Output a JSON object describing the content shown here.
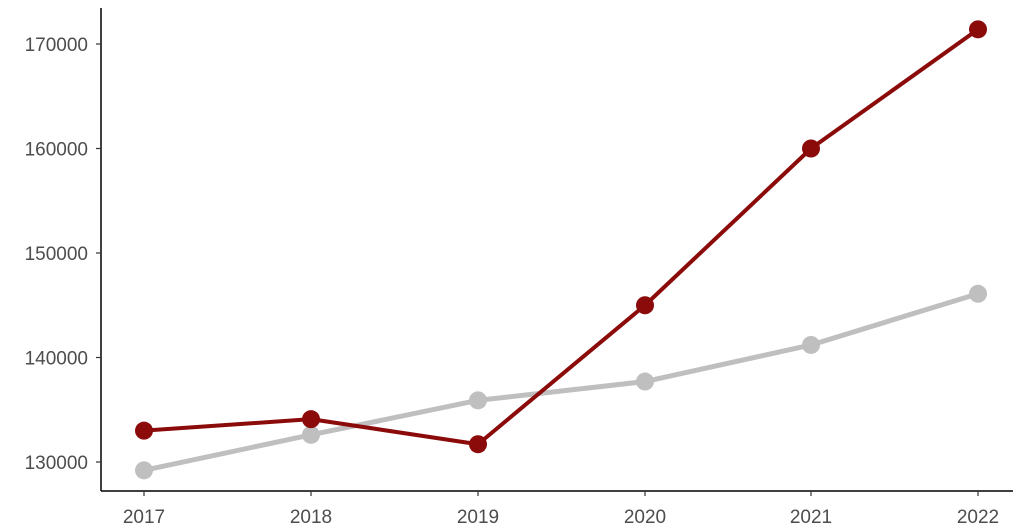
{
  "chart_data": {
    "type": "line",
    "title": "",
    "xlabel": "",
    "ylabel": "",
    "x": [
      "2017",
      "2018",
      "2019",
      "2020",
      "2021",
      "2022"
    ],
    "xtick_labels": [
      "2017",
      "2018",
      "2019",
      "2020",
      "2021",
      "2022"
    ],
    "yticks": [
      130000,
      140000,
      150000,
      160000,
      170000
    ],
    "ytick_labels": [
      "130000",
      "140000",
      "150000",
      "160000",
      "170000"
    ],
    "ylim": [
      128000,
      173500
    ],
    "grid": false,
    "legend": "none",
    "series": [
      {
        "color": "#bfbfbf",
        "values": [
          129200,
          132600,
          135900,
          137700,
          141200,
          146100
        ]
      },
      {
        "color": "#8b0a0a",
        "values": [
          133000,
          134100,
          131700,
          145000,
          160000,
          171400
        ]
      }
    ]
  }
}
